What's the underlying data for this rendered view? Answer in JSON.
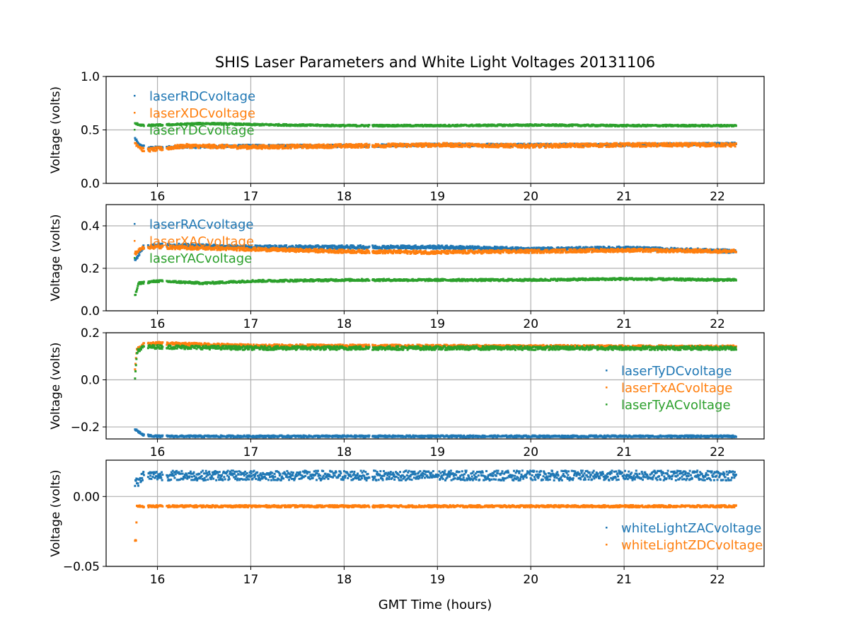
{
  "chart_data": {
    "type": "scatter",
    "title": "SHIS Laser Parameters and White Light Voltages 20131106",
    "xlabel": "GMT Time (hours)",
    "xlim": [
      15.45,
      22.5
    ],
    "xticks": [
      "16",
      "17",
      "18",
      "19",
      "20",
      "21",
      "22"
    ],
    "grid": true,
    "gaps": [
      [
        15.86,
        15.9
      ],
      [
        16.06,
        16.1
      ],
      [
        18.27,
        18.3
      ]
    ],
    "subplots": [
      {
        "ylabel": "Voltage (volts)",
        "ylim": [
          0,
          1.0
        ],
        "yticks": [
          {
            "v": 0,
            "label": "0.0"
          },
          {
            "v": 0.5,
            "label": "0.5"
          },
          {
            "v": 1.0,
            "label": "1.0"
          }
        ],
        "legend_position": "top-left",
        "series": [
          {
            "name": "laserRDCvoltage",
            "color": "#1f77b4",
            "noise": 0.012,
            "points": [
              [
                15.76,
                0.42
              ],
              [
                15.8,
                0.36
              ],
              [
                15.9,
                0.33
              ],
              [
                16.2,
                0.34
              ],
              [
                17,
                0.35
              ],
              [
                18,
                0.35
              ],
              [
                19,
                0.36
              ],
              [
                20,
                0.36
              ],
              [
                21,
                0.36
              ],
              [
                22.2,
                0.37
              ]
            ]
          },
          {
            "name": "laserXDCvoltage",
            "color": "#ff7f0e",
            "noise": 0.018,
            "points": [
              [
                15.76,
                0.38
              ],
              [
                15.85,
                0.31
              ],
              [
                16,
                0.32
              ],
              [
                16.3,
                0.35
              ],
              [
                17,
                0.34
              ],
              [
                18,
                0.35
              ],
              [
                19,
                0.36
              ],
              [
                20,
                0.35
              ],
              [
                21,
                0.36
              ],
              [
                22.2,
                0.36
              ]
            ]
          },
          {
            "name": "laserYDCvoltage",
            "color": "#2ca02c",
            "noise": 0.008,
            "points": [
              [
                15.76,
                0.56
              ],
              [
                15.85,
                0.54
              ],
              [
                16.5,
                0.56
              ],
              [
                17,
                0.55
              ],
              [
                18,
                0.54
              ],
              [
                19,
                0.54
              ],
              [
                20,
                0.545
              ],
              [
                21,
                0.54
              ],
              [
                22.2,
                0.54
              ]
            ]
          }
        ]
      },
      {
        "ylabel": "Voltage (volts)",
        "ylim": [
          0,
          0.5
        ],
        "yticks": [
          {
            "v": 0,
            "label": "0.0"
          },
          {
            "v": 0.2,
            "label": "0.2"
          },
          {
            "v": 0.4,
            "label": "0.4"
          }
        ],
        "legend_position": "top-left",
        "series": [
          {
            "name": "laserRACvoltage",
            "color": "#1f77b4",
            "noise": 0.008,
            "points": [
              [
                15.76,
                0.24
              ],
              [
                15.85,
                0.3
              ],
              [
                16,
                0.31
              ],
              [
                17,
                0.3
              ],
              [
                18,
                0.3
              ],
              [
                19,
                0.3
              ],
              [
                20,
                0.29
              ],
              [
                21,
                0.295
              ],
              [
                22.2,
                0.28
              ]
            ]
          },
          {
            "name": "laserXACvoltage",
            "color": "#ff7f0e",
            "noise": 0.008,
            "points": [
              [
                15.76,
                0.27
              ],
              [
                15.85,
                0.3
              ],
              [
                16,
                0.3
              ],
              [
                17,
                0.29
              ],
              [
                18,
                0.28
              ],
              [
                19,
                0.275
              ],
              [
                20,
                0.28
              ],
              [
                21,
                0.285
              ],
              [
                22.2,
                0.28
              ]
            ]
          },
          {
            "name": "laserYACvoltage",
            "color": "#2ca02c",
            "noise": 0.005,
            "points": [
              [
                15.76,
                0.07
              ],
              [
                15.8,
                0.13
              ],
              [
                16,
                0.14
              ],
              [
                16.5,
                0.13
              ],
              [
                17,
                0.14
              ],
              [
                18,
                0.145
              ],
              [
                19,
                0.145
              ],
              [
                20,
                0.145
              ],
              [
                21,
                0.15
              ],
              [
                22.2,
                0.145
              ]
            ]
          }
        ]
      },
      {
        "ylabel": "Voltage (volts)",
        "ylim": [
          -0.251,
          0.2
        ],
        "yticks": [
          {
            "v": -0.2,
            "label": "−0.2"
          },
          {
            "v": 0,
            "label": "0.0"
          },
          {
            "v": 0.2,
            "label": "0.2"
          }
        ],
        "legend_position": "center-right",
        "series": [
          {
            "name": "laserTyDCvoltage",
            "color": "#1f77b4",
            "noise": 0.004,
            "points": [
              [
                15.76,
                -0.21
              ],
              [
                15.85,
                -0.235
              ],
              [
                16,
                -0.24
              ],
              [
                22.2,
                -0.24
              ]
            ]
          },
          {
            "name": "laserTxACvoltage",
            "color": "#ff7f0e",
            "noise": 0.006,
            "points": [
              [
                15.76,
                0.05
              ],
              [
                15.78,
                0.13
              ],
              [
                15.85,
                0.15
              ],
              [
                16,
                0.155
              ],
              [
                17,
                0.145
              ],
              [
                22.2,
                0.14
              ]
            ]
          },
          {
            "name": "laserTyACvoltage",
            "color": "#2ca02c",
            "noise": 0.008,
            "points": [
              [
                15.76,
                0.01
              ],
              [
                15.78,
                0.12
              ],
              [
                15.85,
                0.14
              ],
              [
                16,
                0.14
              ],
              [
                17,
                0.135
              ],
              [
                22.2,
                0.135
              ]
            ]
          }
        ]
      },
      {
        "ylabel": "Voltage (volts)",
        "ylim": [
          -0.05,
          0.026
        ],
        "yticks": [
          {
            "v": -0.05,
            "label": "−0.05"
          },
          {
            "v": 0,
            "label": "0.00"
          }
        ],
        "legend_position": "lower-right",
        "series": [
          {
            "name": "whiteLightZACvoltage",
            "color": "#1f77b4",
            "noise": 0.0035,
            "points": [
              [
                15.76,
                0.01
              ],
              [
                15.8,
                0.01
              ],
              [
                15.84,
                0.015
              ],
              [
                22.2,
                0.015
              ]
            ]
          },
          {
            "name": "whiteLightZDCvoltage",
            "color": "#ff7f0e",
            "noise": 0.0008,
            "points": [
              [
                15.76,
                -0.032
              ],
              [
                15.77,
                -0.031
              ],
              [
                15.78,
                -0.007
              ],
              [
                22.2,
                -0.007
              ]
            ]
          }
        ]
      }
    ]
  }
}
